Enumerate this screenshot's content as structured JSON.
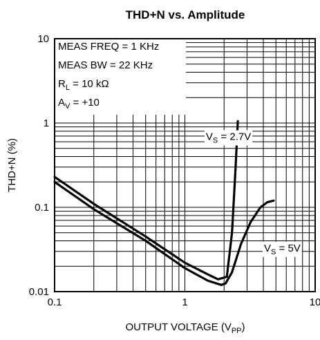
{
  "chart_data": {
    "type": "line",
    "title": "THD+N vs. Amplitude",
    "xlabel": {
      "main": "OUTPUT VOLTAGE (V",
      "sub": "PP",
      "close": ")"
    },
    "ylabel": "THD+N (%)",
    "x_scale": "log",
    "y_scale": "log",
    "xlim": [
      0.1,
      10
    ],
    "ylim": [
      0.01,
      10
    ],
    "grid": true,
    "x_ticks": [
      {
        "value": 0.1,
        "label": "0.1"
      },
      {
        "value": 1,
        "label": "1"
      },
      {
        "value": 10,
        "label": "10"
      }
    ],
    "y_ticks": [
      {
        "value": 0.01,
        "label": "0.01"
      },
      {
        "value": 0.1,
        "label": "0.1"
      },
      {
        "value": 1,
        "label": "1"
      },
      {
        "value": 10,
        "label": "10"
      }
    ],
    "conditions": [
      {
        "pre": "MEAS FREQ = 1 KHz",
        "sub": "",
        "post": ""
      },
      {
        "pre": "MEAS BW = 22 KHz",
        "sub": "",
        "post": ""
      },
      {
        "pre": "R",
        "sub": "L",
        "post": " = 10 kΩ"
      },
      {
        "pre": "A",
        "sub": "V",
        "post": " = +10"
      }
    ],
    "series": [
      {
        "name_parts": {
          "pre": "V",
          "sub": "S",
          "post": " = 2.7V"
        },
        "label_at": {
          "x": 1.45,
          "y": 0.63
        },
        "x": [
          0.1,
          0.2,
          0.5,
          1.0,
          1.5,
          1.8,
          2.1,
          2.3,
          2.45,
          2.55
        ],
        "y": [
          0.23,
          0.11,
          0.045,
          0.022,
          0.016,
          0.014,
          0.015,
          0.05,
          0.3,
          1.05
        ]
      },
      {
        "name_parts": {
          "pre": "V",
          "sub": "S",
          "post": " = 5V"
        },
        "label_at": {
          "x": 4.05,
          "y": 0.03
        },
        "x": [
          0.1,
          0.2,
          0.5,
          1.0,
          1.5,
          1.9,
          2.05,
          2.3,
          2.7,
          3.2,
          3.8,
          4.3,
          4.8
        ],
        "y": [
          0.2,
          0.095,
          0.04,
          0.019,
          0.0135,
          0.012,
          0.0125,
          0.017,
          0.037,
          0.067,
          0.1,
          0.115,
          0.12
        ]
      }
    ]
  }
}
